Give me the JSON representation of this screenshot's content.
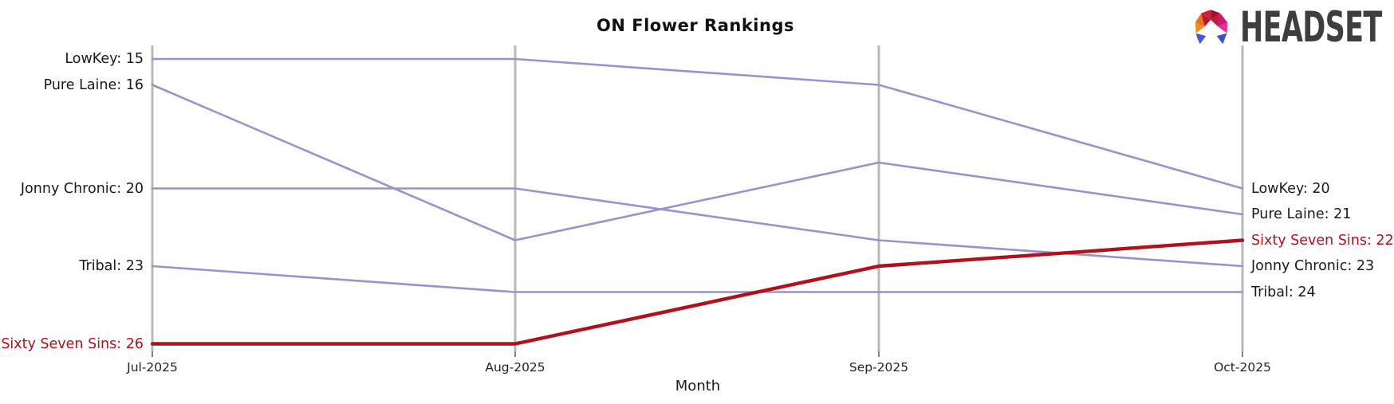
{
  "header": {
    "title": "ON Flower Rankings",
    "brand": {
      "name": "HEADSET",
      "text_color": "#3e3e3e"
    }
  },
  "chart_data": {
    "type": "line",
    "subtype": "bump-rank-chart",
    "title": "ON Flower Rankings",
    "xlabel": "Month",
    "ylabel": "",
    "x": [
      "Jul-2025",
      "Aug-2025",
      "Sep-2025",
      "Oct-2025"
    ],
    "y_axis": {
      "meaning": "rank (lower value drawn higher)",
      "inverted": true,
      "range_shown": [
        15,
        26
      ]
    },
    "grid": "vertical-month-gridlines",
    "legend_position": "inline-left-and-right-labels",
    "label_format": "{name}: {value}",
    "gridline_color": "#b9b9b9",
    "tick_color": "#555555",
    "series": [
      {
        "name": "LowKey",
        "values": [
          15,
          15,
          16,
          20
        ],
        "color": "#9b91d0",
        "highlight": false
      },
      {
        "name": "Pure Laine",
        "values": [
          16,
          22,
          19,
          21
        ],
        "color": "#9b91d0",
        "highlight": false
      },
      {
        "name": "Jonny Chronic",
        "values": [
          20,
          20,
          22,
          23
        ],
        "color": "#9b91d0",
        "highlight": false
      },
      {
        "name": "Tribal",
        "values": [
          23,
          24,
          24,
          24
        ],
        "color": "#9b91d0",
        "highlight": false
      },
      {
        "name": "Sixty Seven Sins",
        "values": [
          26,
          26,
          23,
          22
        ],
        "color": "#b2101a",
        "highlight": true
      }
    ],
    "label_color_normal": "#1a1a1a",
    "label_color_highlight": "#b2101a"
  }
}
